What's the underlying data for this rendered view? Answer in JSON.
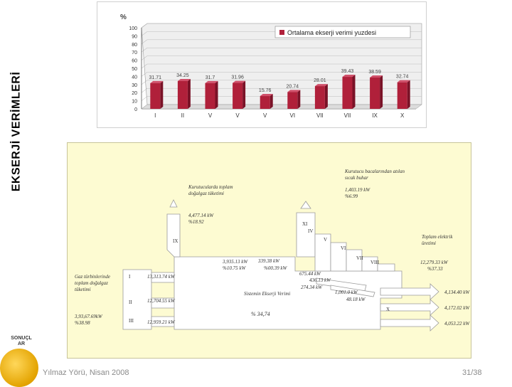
{
  "slide": {
    "side_title": "EKSERJİ VERİMLERİ",
    "footer_author": "Yılmaz Yörü, Nisan 2008",
    "page_number": "31/38",
    "nav_label": "SONUÇL AR",
    "orb_color": "#e8a800"
  },
  "chart_data": {
    "type": "bar",
    "title": "",
    "ylabel": "%",
    "ylim": [
      0,
      100
    ],
    "yticks": [
      "0",
      "10",
      "20",
      "30",
      "40",
      "50",
      "60",
      "70",
      "80",
      "90",
      "100"
    ],
    "categories": [
      "I",
      "II",
      "V",
      "V",
      "V",
      "VI",
      "VII",
      "VII",
      "IX",
      "X"
    ],
    "series": [
      {
        "name": "Ortalama ekserji verimi yuzdesi",
        "values": [
          31.71,
          34.25,
          31.7,
          31.96,
          15.76,
          20.74,
          28.01,
          39.43,
          38.59,
          32.74
        ],
        "labels": [
          "31.71",
          "34.25",
          "31.7",
          "31.96",
          "15.76",
          "20.74",
          "28.01",
          "39.43",
          "38.59",
          "32.74"
        ]
      }
    ],
    "bar_color": "#b0203a",
    "grid": true,
    "legend_position": "top-right"
  },
  "diagram": {
    "labels": {
      "kurutucu_stream": "Kurutucu bacalarından atılan sıcak buhar",
      "kurutucu_loss": "Kurutucularda toplam doğalgaz tüketimi",
      "gaz_input": "Gaz türbinlerinde toplam doğalgaz tüketimi",
      "electric": "Toplam elektrik üretimi",
      "system_eff": "Sistemin Ekserji Verimi",
      "system_pct": "% 34,74"
    },
    "values": {
      "v1": "1,403.19 kW",
      "v1b": "%6.99",
      "v2": "4,477.14 kW",
      "v2b": "%18.92",
      "v3": "3,935.13 kW",
      "v3b": "%10.75 kW",
      "gaz_total": "3,93,67.69kW",
      "gaz_pct": "%38.98",
      "gt1": "13,313.74 kW",
      "gt2": "12,704.55 kW",
      "gt3": "12,959.21 kW",
      "m1": "339.38 kW",
      "m2": "%00.39 kW",
      "m3": "675.44 kW",
      "m4": "436.13 kW",
      "m5": "274.34 kW",
      "m6": "1,001.0 kW",
      "m7": "48.18 kW",
      "elec_total": "12,279.33 kW",
      "elec_pct": "%37.33",
      "out1": "4,134.40 kW",
      "out2": "4,172.02 kW",
      "out3": "4,053.22 kW"
    },
    "box_labels": [
      "I",
      "II",
      "III",
      "IV",
      "V",
      "VI",
      "VII",
      "VIII",
      "IX",
      "X",
      "XI"
    ]
  }
}
